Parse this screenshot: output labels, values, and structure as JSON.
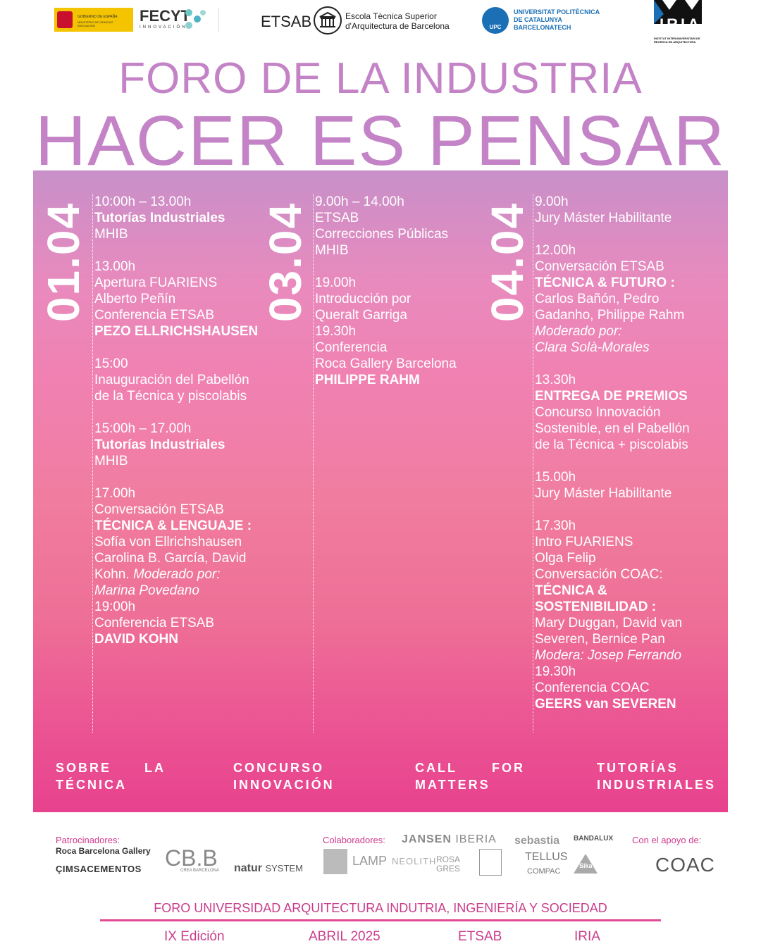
{
  "header": {
    "gov_line1": "GOBIERNO DE ESPAÑA",
    "gov_line2": "MINISTERIO DE CIENCIA E INNOVACIÓN",
    "fecyt": "FECYT",
    "fecyt_sub": "INNOVACIÓN",
    "etsab": "ETSAB",
    "etsab_name_1": "Escola Tècnica Superior",
    "etsab_name_2": "d'Arquitectura de Barcelona",
    "upc_badge": "UPC",
    "upc_1": "UNIVERSITAT POLITÈCNICA",
    "upc_2": "DE CATALUNYA",
    "upc_3": "BARCELONATECH",
    "iria": "IRIA",
    "iria_sub": "INSTITUT INTERUNIVERSITARI DE RECERCA EN ARQUITECTURA",
    "kicker": "FORO DE LA INDUSTRIA",
    "title": "HACER ES PENSAR"
  },
  "schedule": {
    "days": [
      {
        "date": "01.04",
        "blocks": [
          [
            "10:00h – 13.00h",
            {
              "bold": "Tutorías Industriales"
            },
            "MHIB"
          ],
          [
            "13.00h",
            "Apertura FUARIENS",
            "Alberto Peñín",
            "Conferencia ETSAB",
            {
              "bold": "PEZO ELLRICHSHAUSEN"
            }
          ],
          [
            "15:00",
            "Inauguración del Pabellón",
            "de la Técnica y piscolabis"
          ],
          [
            "15:00h – 17.00h",
            {
              "bold": "Tutorías Industriales"
            },
            "MHIB"
          ],
          [
            "17.00h",
            "Conversación ETSAB",
            {
              "bold": "TÉCNICA & LENGUAJE :"
            },
            "Sofía von Ellrichshausen",
            "Carolina B. García, David",
            [
              "Kohn.",
              {
                "italic": "Moderado por:"
              }
            ],
            {
              "italic": "Marina Povedano"
            },
            "19:00h",
            "Conferencia ETSAB",
            {
              "bold": "DAVID KOHN"
            }
          ]
        ]
      },
      {
        "date": "03.04",
        "blocks": [
          [
            "9.00h – 14.00h",
            "ETSAB",
            "Correcciones Públicas",
            "MHIB"
          ],
          [
            "19.00h",
            "Introducción por",
            "Queralt Garriga",
            "19.30h",
            "Conferencia",
            "Roca Gallery Barcelona",
            {
              "bold": "PHILIPPE RAHM"
            }
          ]
        ]
      },
      {
        "date": "04.04",
        "blocks": [
          [
            "9.00h",
            "Jury Máster Habilitante"
          ],
          [
            "12.00h",
            "Conversación ETSAB",
            {
              "bold": "TÉCNICA & FUTURO :"
            },
            "Carlos Bañón, Pedro",
            "Gadanho, Philippe Rahm",
            {
              "italic": "Moderado por:"
            },
            {
              "italic": "Clara Solà-Morales"
            }
          ],
          [
            "13.30h",
            {
              "bold": "ENTREGA DE PREMIOS"
            },
            "Concurso Innovación",
            "Sostenible, en el Pabellón",
            "de la Técnica + piscolabis"
          ],
          [
            "15.00h",
            "Jury Máster Habilitante"
          ],
          [
            "17.30h",
            "Intro FUARIENS",
            "Olga Felip",
            "Conversación COAC:",
            {
              "bold": "TÉCNICA &"
            },
            {
              "bold": "SOSTENIBILIDAD :"
            },
            "Mary Duggan, David van",
            "Severen, Bernice Pan",
            {
              "italic": "Modera: Josep Ferrando"
            },
            "19.30h",
            "Conferencia COAC",
            {
              "bold": "GEERS van SEVEREN"
            }
          ]
        ]
      }
    ]
  },
  "topics": [
    [
      "SOBRE LA",
      "TÉCNICA"
    ],
    [
      "CONCURSO",
      "INNOVACIÓN"
    ],
    [
      "CALL FOR",
      "MATTERS"
    ],
    [
      "TUTORÍAS",
      "INDUSTRIALES"
    ]
  ],
  "sponsors": {
    "patrocinadores_label": "Patrocinadores:",
    "roca": "Roca Barcelona Gallery",
    "cimsa": "ÇIMSACEMENTOS",
    "cbb": "CB.B",
    "cbb_sub": "CREA BARCELONA",
    "natur": "natur",
    "natur_system": "SYSTEM",
    "colaboradores_label": "Colaboradores:",
    "jansen": "JANSEN",
    "iberia": "IBERIA",
    "sebastia": "sebastia",
    "bandalux": "BANDALUX",
    "lamp": "LAMP",
    "neolith": "NEOLITH",
    "rosagres_1": "ROSA",
    "rosagres_2": "GRES",
    "tellus": "TELLUS",
    "compac": "COMPAC",
    "sika": "Sika",
    "apoyo_label": "Con el apoyo de:",
    "coac": "COAC"
  },
  "footer": {
    "line": "FORO UNIVERSIDAD ARQUITECTURA INDUTRIA, INGENIERÍA Y SOCIEDAD",
    "edition": "IX Edición",
    "date": "ABRIL 2025",
    "place": "ETSAB",
    "org": "IRIA"
  }
}
